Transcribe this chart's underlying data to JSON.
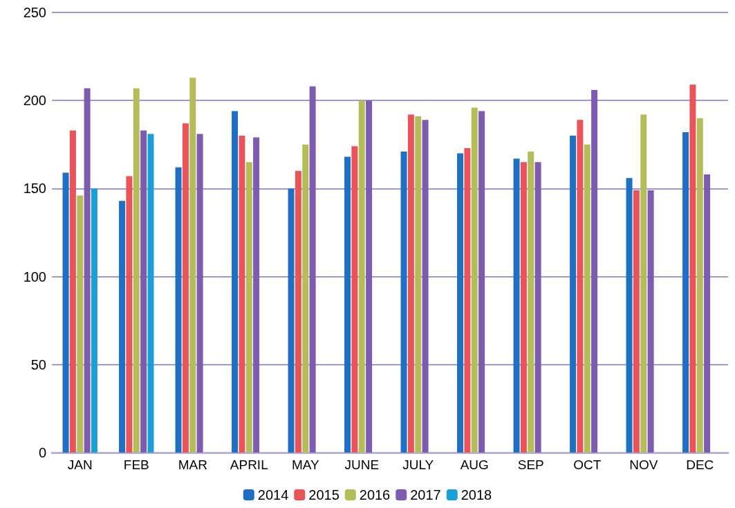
{
  "chart_data": {
    "type": "bar",
    "categories": [
      "JAN",
      "FEB",
      "MAR",
      "APRIL",
      "MAY",
      "JUNE",
      "JULY",
      "AUG",
      "SEP",
      "OCT",
      "NOV",
      "DEC"
    ],
    "series": [
      {
        "name": "2014",
        "color": "#1f6fc5",
        "values": [
          159,
          143,
          162,
          194,
          150,
          168,
          171,
          170,
          167,
          180,
          156,
          182
        ]
      },
      {
        "name": "2015",
        "color": "#e9545b",
        "values": [
          183,
          157,
          187,
          180,
          160,
          174,
          192,
          173,
          165,
          189,
          149,
          209
        ]
      },
      {
        "name": "2016",
        "color": "#b5bd5a",
        "values": [
          146,
          207,
          213,
          165,
          175,
          200,
          191,
          196,
          171,
          175,
          192,
          190
        ]
      },
      {
        "name": "2017",
        "color": "#7d5cb0",
        "values": [
          207,
          183,
          181,
          179,
          208,
          200,
          189,
          194,
          165,
          206,
          149,
          158
        ]
      },
      {
        "name": "2018",
        "color": "#1a9fd6",
        "values": [
          150,
          181,
          null,
          null,
          null,
          null,
          null,
          null,
          null,
          null,
          null,
          null
        ]
      }
    ],
    "ylim": [
      0,
      250
    ],
    "yticks": [
      0,
      50,
      100,
      150,
      200,
      250
    ],
    "grid": "y",
    "legend": "bottom"
  }
}
